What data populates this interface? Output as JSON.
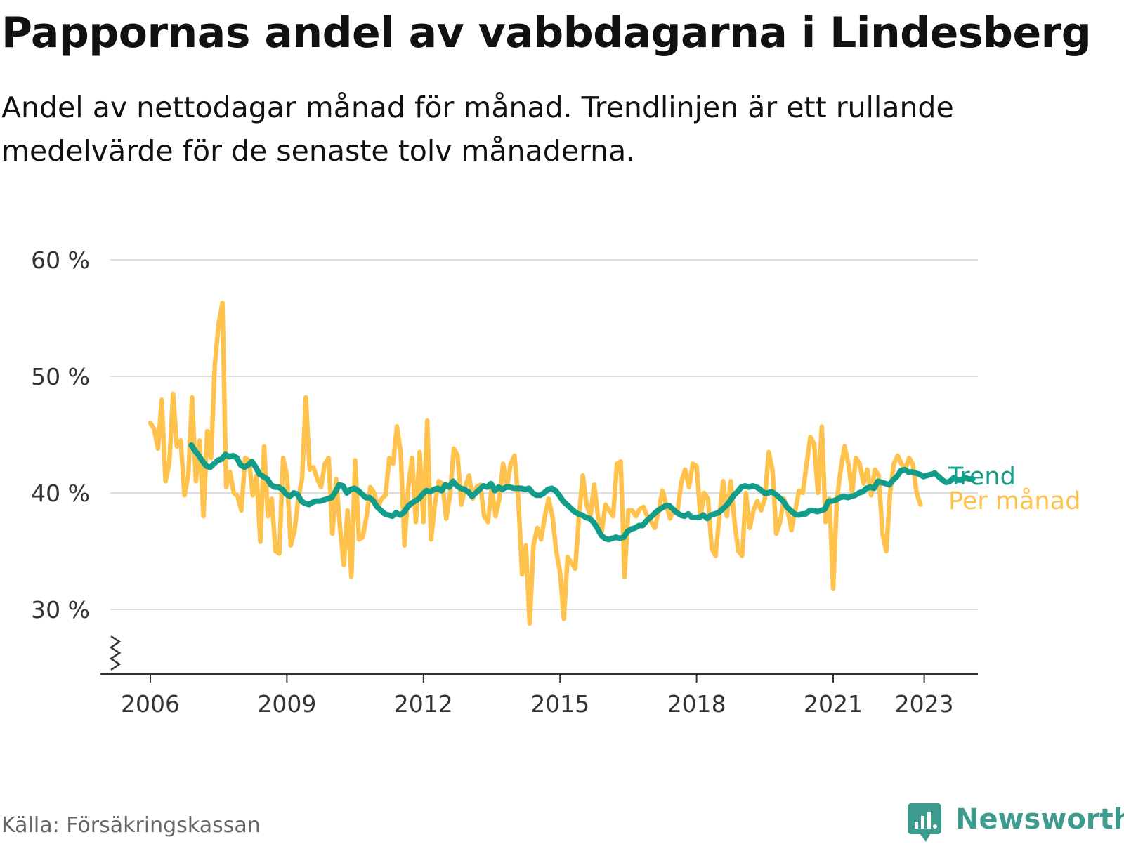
{
  "title": "Pappornas andel av vabbdagarna i Lindesberg",
  "subtitle": "Andel av nettodagar månad för månad. Trendlinjen är ett rullande medelvärde för de senaste tolv månaderna.",
  "source": "Källa: Försäkringskassan",
  "brand": "Newsworthy",
  "colors": {
    "monthly": "#ffc24d",
    "trend": "#129c8a",
    "grid": "#dddddd",
    "axis": "#333333",
    "brand": "#3e9b8e"
  },
  "chart_data": {
    "type": "line",
    "xlim": [
      2006,
      2024.2
    ],
    "ylim": [
      25,
      60
    ],
    "y_ticks": [
      30,
      40,
      50,
      60
    ],
    "y_tick_labels": [
      "30 %",
      "40 %",
      "50 %",
      "60 %"
    ],
    "x_ticks": [
      2006,
      2009,
      2012,
      2015,
      2018,
      2021,
      2023
    ],
    "x_tick_labels": [
      "2006",
      "2009",
      "2012",
      "2015",
      "2018",
      "2021",
      "2023"
    ],
    "grid": true,
    "legend_placement": "right-end-labels",
    "series": [
      {
        "name": "Trend",
        "color_key": "trend",
        "x_start": 2006.9,
        "x_step": 0.0833333,
        "values": [
          44.1,
          43.6,
          43.2,
          42.7,
          42.3,
          42.2,
          42.5,
          42.8,
          42.9,
          43.3,
          43.1,
          43.2,
          43.0,
          42.4,
          42.2,
          42.4,
          42.7,
          42.2,
          41.6,
          41.4,
          41.2,
          40.7,
          40.5,
          40.5,
          40.3,
          39.9,
          39.7,
          40.0,
          39.9,
          39.3,
          39.1,
          39.0,
          39.2,
          39.3,
          39.3,
          39.4,
          39.5,
          39.6,
          40.1,
          40.7,
          40.6,
          40.0,
          40.3,
          40.4,
          40.2,
          39.9,
          39.6,
          39.6,
          39.3,
          38.8,
          38.5,
          38.2,
          38.1,
          38.0,
          38.3,
          38.1,
          38.3,
          38.8,
          39.1,
          39.3,
          39.5,
          39.9,
          40.2,
          40.1,
          40.3,
          40.4,
          40.2,
          40.7,
          40.5,
          41.0,
          40.6,
          40.4,
          40.3,
          40.1,
          39.7,
          40.0,
          40.3,
          40.6,
          40.5,
          40.8,
          40.2,
          40.5,
          40.3,
          40.5,
          40.5,
          40.4,
          40.4,
          40.4,
          40.3,
          40.4,
          40.0,
          39.8,
          39.8,
          40.0,
          40.3,
          40.4,
          40.2,
          39.8,
          39.3,
          39.0,
          38.7,
          38.4,
          38.2,
          38.1,
          37.9,
          37.8,
          37.5,
          37.0,
          36.4,
          36.1,
          36.0,
          36.1,
          36.2,
          36.1,
          36.2,
          36.7,
          36.9,
          37.0,
          37.2,
          37.2,
          37.6,
          37.9,
          38.2,
          38.5,
          38.7,
          38.9,
          38.9,
          38.6,
          38.3,
          38.1,
          38.0,
          38.2,
          37.9,
          37.9,
          37.9,
          38.1,
          37.8,
          38.1,
          38.2,
          38.3,
          38.6,
          38.9,
          39.3,
          39.8,
          40.1,
          40.5,
          40.6,
          40.5,
          40.6,
          40.5,
          40.3,
          40.0,
          40.0,
          40.1,
          39.9,
          39.6,
          39.3,
          38.8,
          38.5,
          38.2,
          38.1,
          38.2,
          38.2,
          38.5,
          38.5,
          38.4,
          38.5,
          38.6,
          39.3,
          39.3,
          39.4,
          39.6,
          39.7,
          39.6,
          39.7,
          39.8,
          40.0,
          40.1,
          40.4,
          40.5,
          40.4,
          41.0,
          40.9,
          40.8,
          40.7,
          41.1,
          41.4,
          41.9,
          42.0,
          41.8,
          41.8,
          41.7,
          41.6,
          41.4,
          41.5,
          41.6,
          41.7,
          41.4,
          41.1,
          40.9,
          41.0,
          41.3,
          41.1,
          41.1,
          41.3,
          41.2,
          41.2
        ]
      },
      {
        "name": "Per månad",
        "color_key": "monthly",
        "x_start": 2006.0,
        "x_step": 0.0833333,
        "values": [
          46.0,
          45.5,
          43.8,
          48.0,
          41.0,
          42.5,
          48.5,
          44.0,
          44.5,
          39.8,
          41.5,
          48.2,
          41.0,
          44.5,
          38.0,
          45.3,
          43.0,
          51.0,
          54.5,
          56.3,
          40.5,
          41.8,
          40.0,
          39.7,
          38.5,
          43.0,
          42.8,
          39.8,
          41.5,
          35.8,
          44.0,
          38.0,
          39.5,
          35.0,
          34.8,
          43.0,
          41.5,
          35.5,
          36.7,
          39.5,
          41.2,
          48.2,
          42.0,
          42.2,
          41.2,
          40.5,
          42.5,
          43.0,
          36.5,
          41.2,
          37.0,
          33.8,
          38.5,
          32.8,
          42.8,
          36.0,
          36.2,
          38.0,
          40.5,
          40.0,
          38.8,
          39.5,
          39.8,
          43.0,
          42.5,
          45.7,
          43.5,
          35.5,
          40.5,
          43.0,
          37.5,
          43.5,
          37.5,
          46.2,
          36.0,
          39.0,
          41.0,
          40.8,
          37.8,
          39.8,
          43.8,
          43.2,
          39.0,
          40.5,
          41.5,
          39.5,
          40.5,
          40.7,
          38.0,
          37.5,
          40.5,
          38.0,
          39.5,
          42.5,
          40.5,
          42.5,
          43.2,
          39.5,
          33.0,
          35.5,
          28.8,
          35.5,
          37.0,
          36.0,
          38.0,
          39.5,
          38.0,
          35.0,
          33.2,
          29.2,
          34.5,
          34.0,
          33.5,
          38.0,
          41.5,
          39.0,
          38.0,
          40.7,
          38.0,
          36.7,
          39.0,
          38.5,
          38.0,
          42.5,
          42.7,
          32.8,
          38.5,
          38.5,
          38.0,
          38.6,
          38.8,
          38.0,
          37.5,
          37.0,
          38.5,
          40.2,
          39.0,
          37.8,
          38.5,
          38.5,
          41.0,
          42.0,
          40.5,
          42.5,
          42.3,
          38.0,
          40.0,
          39.5,
          35.2,
          34.6,
          38.0,
          41.0,
          38.0,
          41.0,
          37.5,
          35.0,
          34.6,
          40.0,
          37.0,
          38.5,
          39.3,
          38.5,
          39.5,
          43.5,
          42.0,
          36.5,
          37.5,
          39.5,
          38.5,
          36.8,
          38.5,
          40.2,
          40.0,
          42.5,
          44.8,
          44.2,
          40.0,
          45.7,
          37.5,
          39.5,
          31.8,
          39.5,
          42.0,
          44.0,
          42.5,
          40.0,
          43.0,
          42.5,
          40.8,
          42.0,
          39.8,
          42.0,
          41.5,
          36.5,
          35.0,
          40.0,
          42.5,
          43.2,
          42.5,
          42.0,
          43.0,
          42.5,
          40.0,
          39.0
        ]
      }
    ]
  }
}
